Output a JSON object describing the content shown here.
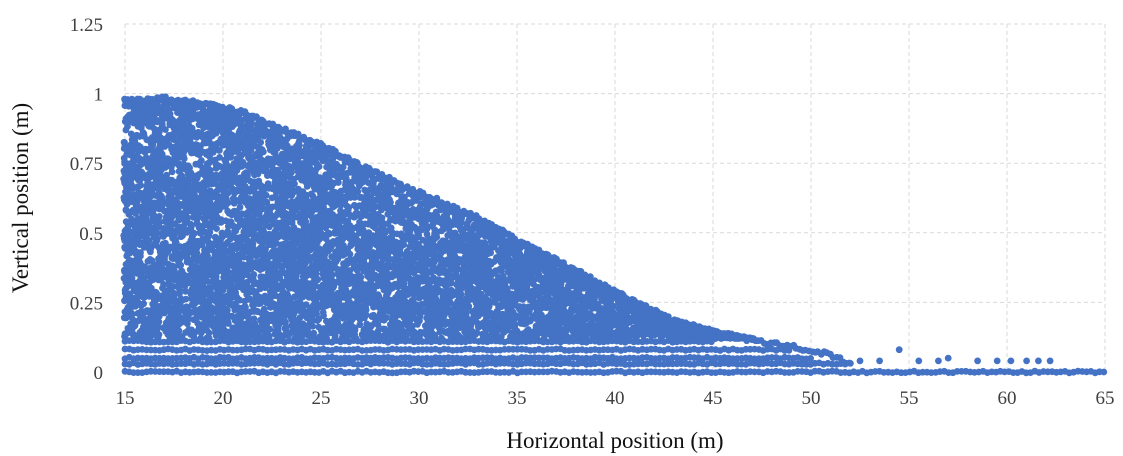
{
  "chart_data": {
    "type": "scatter",
    "xlabel": "Horizontal position (m)",
    "ylabel": "Vertical position (m)",
    "xlim": [
      15,
      65
    ],
    "ylim": [
      0,
      1.25
    ],
    "x_ticks": [
      "15",
      "20",
      "25",
      "30",
      "35",
      "40",
      "45",
      "50",
      "55",
      "60",
      "65"
    ],
    "y_ticks": [
      "0",
      "0.25",
      "0.5",
      "0.75",
      "1",
      "1.25"
    ],
    "grid": true,
    "legend": "none",
    "marker_color": "#4472C4",
    "upper_envelope": [
      {
        "x": 15,
        "y": 0.98
      },
      {
        "x": 17,
        "y": 0.99
      },
      {
        "x": 19,
        "y": 0.97
      },
      {
        "x": 21,
        "y": 0.94
      },
      {
        "x": 23,
        "y": 0.88
      },
      {
        "x": 25,
        "y": 0.82
      },
      {
        "x": 27,
        "y": 0.75
      },
      {
        "x": 29,
        "y": 0.68
      },
      {
        "x": 31,
        "y": 0.62
      },
      {
        "x": 33,
        "y": 0.56
      },
      {
        "x": 35,
        "y": 0.48
      },
      {
        "x": 37,
        "y": 0.41
      },
      {
        "x": 39,
        "y": 0.33
      },
      {
        "x": 41,
        "y": 0.26
      },
      {
        "x": 43,
        "y": 0.19
      },
      {
        "x": 45,
        "y": 0.15
      },
      {
        "x": 47,
        "y": 0.12
      },
      {
        "x": 49,
        "y": 0.1
      },
      {
        "x": 51,
        "y": 0.07
      },
      {
        "x": 52,
        "y": 0.04
      }
    ],
    "bands": [
      {
        "y": 0.0,
        "x_range": [
          15,
          65
        ]
      },
      {
        "y": 0.03,
        "x_range": [
          15,
          52
        ]
      },
      {
        "y": 0.05,
        "x_range": [
          15,
          50
        ]
      },
      {
        "y": 0.08,
        "x_range": [
          15,
          49
        ]
      },
      {
        "y": 0.11,
        "x_range": [
          15,
          45
        ]
      }
    ],
    "tail_points": [
      {
        "x": 52.5,
        "y": 0.04
      },
      {
        "x": 53.5,
        "y": 0.04
      },
      {
        "x": 54.5,
        "y": 0.08
      },
      {
        "x": 55.5,
        "y": 0.04
      },
      {
        "x": 56.5,
        "y": 0.04
      },
      {
        "x": 57,
        "y": 0.05
      },
      {
        "x": 58.5,
        "y": 0.04
      },
      {
        "x": 59.5,
        "y": 0.04
      },
      {
        "x": 60.2,
        "y": 0.04
      },
      {
        "x": 61,
        "y": 0.04
      },
      {
        "x": 61.6,
        "y": 0.04
      },
      {
        "x": 62.2,
        "y": 0.04
      }
    ]
  }
}
